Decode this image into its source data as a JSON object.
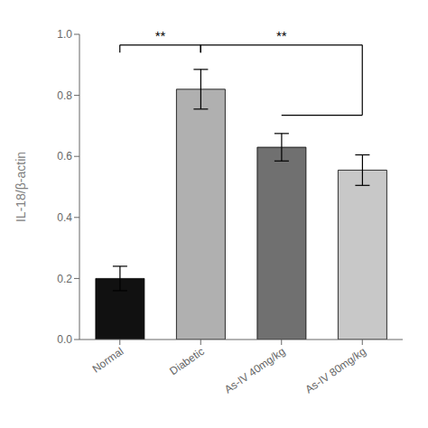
{
  "chart_data": {
    "type": "bar",
    "categories": [
      "Normal",
      "Diabetic",
      "As-IV 40mg/kg",
      "As-IV 80mg/kg"
    ],
    "values": [
      0.2,
      0.82,
      0.63,
      0.555
    ],
    "errors": [
      0.04,
      0.065,
      0.045,
      0.05
    ],
    "colors": [
      "#111111",
      "#b0b0b0",
      "#707070",
      "#c8c8c8"
    ],
    "ylabel": "IL-18/β-actin",
    "ylim": [
      0.0,
      1.0
    ],
    "yticks": [
      {
        "value": 0.0,
        "label": "0.0"
      },
      {
        "value": 0.2,
        "label": "0.2"
      },
      {
        "value": 0.4,
        "label": "0.4"
      },
      {
        "value": 0.6,
        "label": "0.6"
      },
      {
        "value": 0.8,
        "label": "0.8"
      },
      {
        "value": 1.0,
        "label": "1.0"
      }
    ],
    "grid": false,
    "annotations": [
      {
        "text": "**",
        "from": "Normal",
        "to": "Diabetic",
        "y": 0.965,
        "drop": 0.025
      },
      {
        "text": "**",
        "from": "Diabetic",
        "to": "As-IV 80mg/kg",
        "y": 0.965,
        "drop": 0.025,
        "inner_y": 0.735,
        "inner_from": "As-IV 40mg/kg"
      }
    ]
  }
}
